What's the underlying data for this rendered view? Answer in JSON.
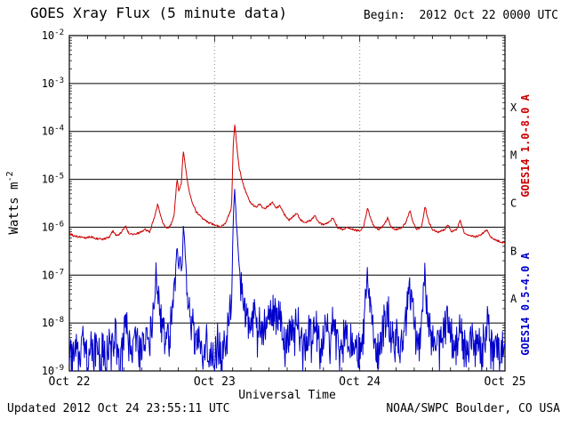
{
  "header": {
    "title": "GOES Xray Flux (5 minute data)",
    "begin_label": "Begin:  2012 Oct 22 0000 UTC"
  },
  "axes": {
    "y_label_main": "Watts m",
    "y_label_exp": "-2",
    "x_label": "Universal Time"
  },
  "right_labels": {
    "long_text": "GOES14 1.0-8.0 A",
    "short_text": "GOES14 0.5-4.0 A"
  },
  "footer": {
    "updated": "Updated 2012 Oct 24 23:55:11 UTC",
    "source": "NOAA/SWPC Boulder, CO USA"
  },
  "chart_data": {
    "type": "line",
    "title": "GOES Xray Flux (5 minute data)",
    "xlabel": "Universal Time",
    "ylabel": "Watts m^-2",
    "x_unit": "hours since 2012 Oct 22 0000 UTC",
    "x_range_hours": [
      0,
      72
    ],
    "y_log_range": [
      -9,
      -2
    ],
    "x_tick_hours": [
      0,
      24,
      48,
      72
    ],
    "x_tick_labels": [
      "Oct 22",
      "Oct 23",
      "Oct 24",
      "Oct 25"
    ],
    "y_tick_exponents": [
      -2,
      -3,
      -4,
      -5,
      -6,
      -7,
      -8,
      -9
    ],
    "flare_classes": [
      {
        "label": "X",
        "log_center": -3.5
      },
      {
        "label": "M",
        "log_center": -4.5
      },
      {
        "label": "C",
        "log_center": -5.5
      },
      {
        "label": "B",
        "log_center": -6.5
      },
      {
        "label": "A",
        "log_center": -7.5
      }
    ],
    "grid": "horizontal solid lines at each decade; vertical dotted lines at day boundaries",
    "legend_position": "right, rotated",
    "noise_seed": 20121024,
    "sample_step_hours": 0.0833333,
    "series": [
      {
        "id": "xray-short",
        "name": "GOES14 0.5-4.0 A",
        "color": "#0000cc",
        "noise_amp_log": 0.45,
        "noise_below_log": -7,
        "points_log10": [
          [
            0,
            -8.6
          ],
          [
            0.5,
            -8.85
          ],
          [
            1,
            -8.5
          ],
          [
            1.5,
            -8.9
          ],
          [
            2,
            -8.6
          ],
          [
            2.5,
            -8.35
          ],
          [
            3,
            -8.8
          ],
          [
            3.5,
            -8.5
          ],
          [
            4,
            -8.9
          ],
          [
            4.5,
            -8.25
          ],
          [
            5,
            -8.85
          ],
          [
            5.5,
            -8.6
          ],
          [
            6,
            -8.9
          ],
          [
            6.5,
            -8.4
          ],
          [
            7,
            -8.7
          ],
          [
            7.5,
            -8.1
          ],
          [
            8,
            -8.6
          ],
          [
            8.5,
            -8.85
          ],
          [
            9,
            -8.3
          ],
          [
            9.5,
            -8.05
          ],
          [
            10,
            -8.6
          ],
          [
            10.5,
            -8.8
          ],
          [
            11,
            -8.4
          ],
          [
            11.5,
            -8.7
          ],
          [
            12,
            -8.5
          ],
          [
            12.5,
            -8.25
          ],
          [
            13,
            -8.6
          ],
          [
            13.5,
            -8.05
          ],
          [
            14,
            -7.6
          ],
          [
            14.4,
            -7.0
          ],
          [
            14.7,
            -7.45
          ],
          [
            15.1,
            -7.9
          ],
          [
            15.6,
            -8.3
          ],
          [
            16.1,
            -8.5
          ],
          [
            16.6,
            -8.2
          ],
          [
            17.1,
            -7.8
          ],
          [
            17.5,
            -7.0
          ],
          [
            17.8,
            -6.35
          ],
          [
            18.05,
            -6.9
          ],
          [
            18.3,
            -6.6
          ],
          [
            18.6,
            -7.1
          ],
          [
            18.85,
            -5.92
          ],
          [
            19.05,
            -6.3
          ],
          [
            19.35,
            -7.0
          ],
          [
            19.7,
            -7.6
          ],
          [
            20.1,
            -7.95
          ],
          [
            20.6,
            -8.25
          ],
          [
            21.1,
            -8.5
          ],
          [
            21.6,
            -8.3
          ],
          [
            22.1,
            -8.6
          ],
          [
            22.6,
            -8.4
          ],
          [
            23.1,
            -8.7
          ],
          [
            23.6,
            -8.5
          ],
          [
            24.1,
            -8.6
          ],
          [
            24.6,
            -8.4
          ],
          [
            25.1,
            -8.7
          ],
          [
            25.6,
            -8.5
          ],
          [
            26.1,
            -8.2
          ],
          [
            26.8,
            -7.6
          ],
          [
            27.1,
            -5.8
          ],
          [
            27.32,
            -5.2
          ],
          [
            27.6,
            -5.9
          ],
          [
            27.9,
            -6.5
          ],
          [
            28.2,
            -7.0
          ],
          [
            28.6,
            -7.5
          ],
          [
            29.1,
            -7.8
          ],
          [
            29.6,
            -8.0
          ],
          [
            30.1,
            -8.2
          ],
          [
            30.6,
            -7.9
          ],
          [
            31.1,
            -8.3
          ],
          [
            31.6,
            -7.95
          ],
          [
            32.1,
            -8.2
          ],
          [
            32.6,
            -7.8
          ],
          [
            33.1,
            -8.1
          ],
          [
            33.6,
            -7.6
          ],
          [
            34.1,
            -8.0
          ],
          [
            34.6,
            -7.75
          ],
          [
            35.1,
            -8.2
          ],
          [
            35.6,
            -8.5
          ],
          [
            36.1,
            -8.3
          ],
          [
            36.6,
            -8.0
          ],
          [
            37.1,
            -8.4
          ],
          [
            37.6,
            -7.9
          ],
          [
            38.1,
            -8.3
          ],
          [
            38.6,
            -8.6
          ],
          [
            39.1,
            -8.4
          ],
          [
            39.6,
            -8.1
          ],
          [
            40.1,
            -8.5
          ],
          [
            40.6,
            -7.95
          ],
          [
            41.1,
            -8.4
          ],
          [
            41.6,
            -8.6
          ],
          [
            42.1,
            -8.3
          ],
          [
            42.6,
            -8.0
          ],
          [
            43.1,
            -8.5
          ],
          [
            43.6,
            -7.95
          ],
          [
            44.1,
            -8.45
          ],
          [
            44.6,
            -8.7
          ],
          [
            45.1,
            -8.5
          ],
          [
            45.6,
            -8.25
          ],
          [
            46.1,
            -8.6
          ],
          [
            46.6,
            -8.3
          ],
          [
            47.1,
            -8.7
          ],
          [
            47.6,
            -8.5
          ],
          [
            48.1,
            -8.6
          ],
          [
            48.6,
            -8.2
          ],
          [
            49.3,
            -7.0
          ],
          [
            49.7,
            -7.5
          ],
          [
            50.1,
            -8.0
          ],
          [
            50.6,
            -8.45
          ],
          [
            51.1,
            -8.6
          ],
          [
            51.6,
            -8.3
          ],
          [
            52.1,
            -8.0
          ],
          [
            52.6,
            -7.7
          ],
          [
            53.1,
            -8.2
          ],
          [
            53.6,
            -8.5
          ],
          [
            54.1,
            -8.3
          ],
          [
            54.6,
            -8.6
          ],
          [
            55.1,
            -8.4
          ],
          [
            55.6,
            -8.0
          ],
          [
            56.3,
            -7.2
          ],
          [
            56.7,
            -7.7
          ],
          [
            57.1,
            -8.2
          ],
          [
            57.6,
            -8.5
          ],
          [
            58.1,
            -8.3
          ],
          [
            58.8,
            -7.1
          ],
          [
            59.2,
            -7.8
          ],
          [
            59.6,
            -8.2
          ],
          [
            60.1,
            -8.5
          ],
          [
            60.6,
            -8.3
          ],
          [
            61.1,
            -8.6
          ],
          [
            61.6,
            -8.4
          ],
          [
            62.1,
            -8.1
          ],
          [
            62.6,
            -7.8
          ],
          [
            63.1,
            -8.3
          ],
          [
            63.6,
            -8.6
          ],
          [
            64.1,
            -8.4
          ],
          [
            64.6,
            -7.95
          ],
          [
            65.1,
            -8.4
          ],
          [
            65.6,
            -8.7
          ],
          [
            66.1,
            -8.5
          ],
          [
            66.6,
            -8.25
          ],
          [
            67.1,
            -8.6
          ],
          [
            67.6,
            -8.4
          ],
          [
            68.1,
            -8.7
          ],
          [
            68.6,
            -8.3
          ],
          [
            69.1,
            -8.05
          ],
          [
            69.6,
            -8.5
          ],
          [
            70.1,
            -8.7
          ],
          [
            70.6,
            -8.45
          ],
          [
            71.1,
            -8.8
          ],
          [
            71.6,
            -8.55
          ],
          [
            72,
            -8.7
          ]
        ]
      },
      {
        "id": "xray-long",
        "name": "GOES14 1.0-8.0 A",
        "color": "#cc0000",
        "noise_amp_log": 0.02,
        "noise_below_log": 0,
        "points_log10": [
          [
            0,
            -6.12
          ],
          [
            0.7,
            -6.18
          ],
          [
            1.5,
            -6.2
          ],
          [
            2.5,
            -6.22
          ],
          [
            3.5,
            -6.2
          ],
          [
            4.5,
            -6.24
          ],
          [
            5.5,
            -6.25
          ],
          [
            6.5,
            -6.22
          ],
          [
            7.2,
            -6.08
          ],
          [
            7.8,
            -6.18
          ],
          [
            8.5,
            -6.12
          ],
          [
            9.3,
            -5.98
          ],
          [
            9.8,
            -6.12
          ],
          [
            10.5,
            -6.15
          ],
          [
            11.5,
            -6.12
          ],
          [
            12.5,
            -6.05
          ],
          [
            13.3,
            -6.1
          ],
          [
            14.2,
            -5.72
          ],
          [
            14.6,
            -5.52
          ],
          [
            15.1,
            -5.78
          ],
          [
            15.6,
            -5.95
          ],
          [
            16.2,
            -6.03
          ],
          [
            16.8,
            -5.95
          ],
          [
            17.3,
            -5.75
          ],
          [
            17.8,
            -4.98
          ],
          [
            18.1,
            -5.25
          ],
          [
            18.5,
            -5.08
          ],
          [
            18.85,
            -4.38
          ],
          [
            19.2,
            -4.75
          ],
          [
            19.6,
            -5.12
          ],
          [
            20.2,
            -5.45
          ],
          [
            21,
            -5.68
          ],
          [
            22,
            -5.82
          ],
          [
            23,
            -5.9
          ],
          [
            24,
            -5.95
          ],
          [
            25,
            -6.0
          ],
          [
            25.8,
            -5.92
          ],
          [
            26.8,
            -5.6
          ],
          [
            27.1,
            -4.25
          ],
          [
            27.35,
            -3.82
          ],
          [
            27.7,
            -4.35
          ],
          [
            28.1,
            -4.78
          ],
          [
            28.6,
            -5.05
          ],
          [
            29.2,
            -5.28
          ],
          [
            30,
            -5.5
          ],
          [
            30.8,
            -5.58
          ],
          [
            31.5,
            -5.52
          ],
          [
            32.2,
            -5.62
          ],
          [
            33,
            -5.55
          ],
          [
            33.6,
            -5.48
          ],
          [
            34.2,
            -5.6
          ],
          [
            34.8,
            -5.55
          ],
          [
            35.5,
            -5.72
          ],
          [
            36.3,
            -5.85
          ],
          [
            37,
            -5.78
          ],
          [
            37.6,
            -5.7
          ],
          [
            38.2,
            -5.85
          ],
          [
            39,
            -5.9
          ],
          [
            40,
            -5.85
          ],
          [
            40.6,
            -5.75
          ],
          [
            41.2,
            -5.9
          ],
          [
            42,
            -5.95
          ],
          [
            43,
            -5.88
          ],
          [
            43.6,
            -5.8
          ],
          [
            44.3,
            -6.0
          ],
          [
            45.2,
            -6.05
          ],
          [
            46,
            -6.0
          ],
          [
            47,
            -6.05
          ],
          [
            48,
            -6.08
          ],
          [
            48.6,
            -6.0
          ],
          [
            49.3,
            -5.6
          ],
          [
            49.8,
            -5.82
          ],
          [
            50.4,
            -6.0
          ],
          [
            51.2,
            -6.05
          ],
          [
            52,
            -5.95
          ],
          [
            52.6,
            -5.8
          ],
          [
            53.2,
            -6.0
          ],
          [
            54,
            -6.05
          ],
          [
            55,
            -6.0
          ],
          [
            55.6,
            -5.9
          ],
          [
            56.3,
            -5.66
          ],
          [
            56.8,
            -5.9
          ],
          [
            57.4,
            -6.05
          ],
          [
            58.2,
            -6.0
          ],
          [
            58.8,
            -5.56
          ],
          [
            59.3,
            -5.85
          ],
          [
            60,
            -6.05
          ],
          [
            61,
            -6.1
          ],
          [
            62,
            -6.05
          ],
          [
            62.6,
            -5.95
          ],
          [
            63.2,
            -6.1
          ],
          [
            64,
            -6.05
          ],
          [
            64.6,
            -5.86
          ],
          [
            65.2,
            -6.1
          ],
          [
            66,
            -6.16
          ],
          [
            67,
            -6.2
          ],
          [
            68,
            -6.16
          ],
          [
            69,
            -6.05
          ],
          [
            69.6,
            -6.2
          ],
          [
            70.3,
            -6.26
          ],
          [
            71.2,
            -6.3
          ],
          [
            72,
            -6.33
          ]
        ]
      }
    ]
  }
}
